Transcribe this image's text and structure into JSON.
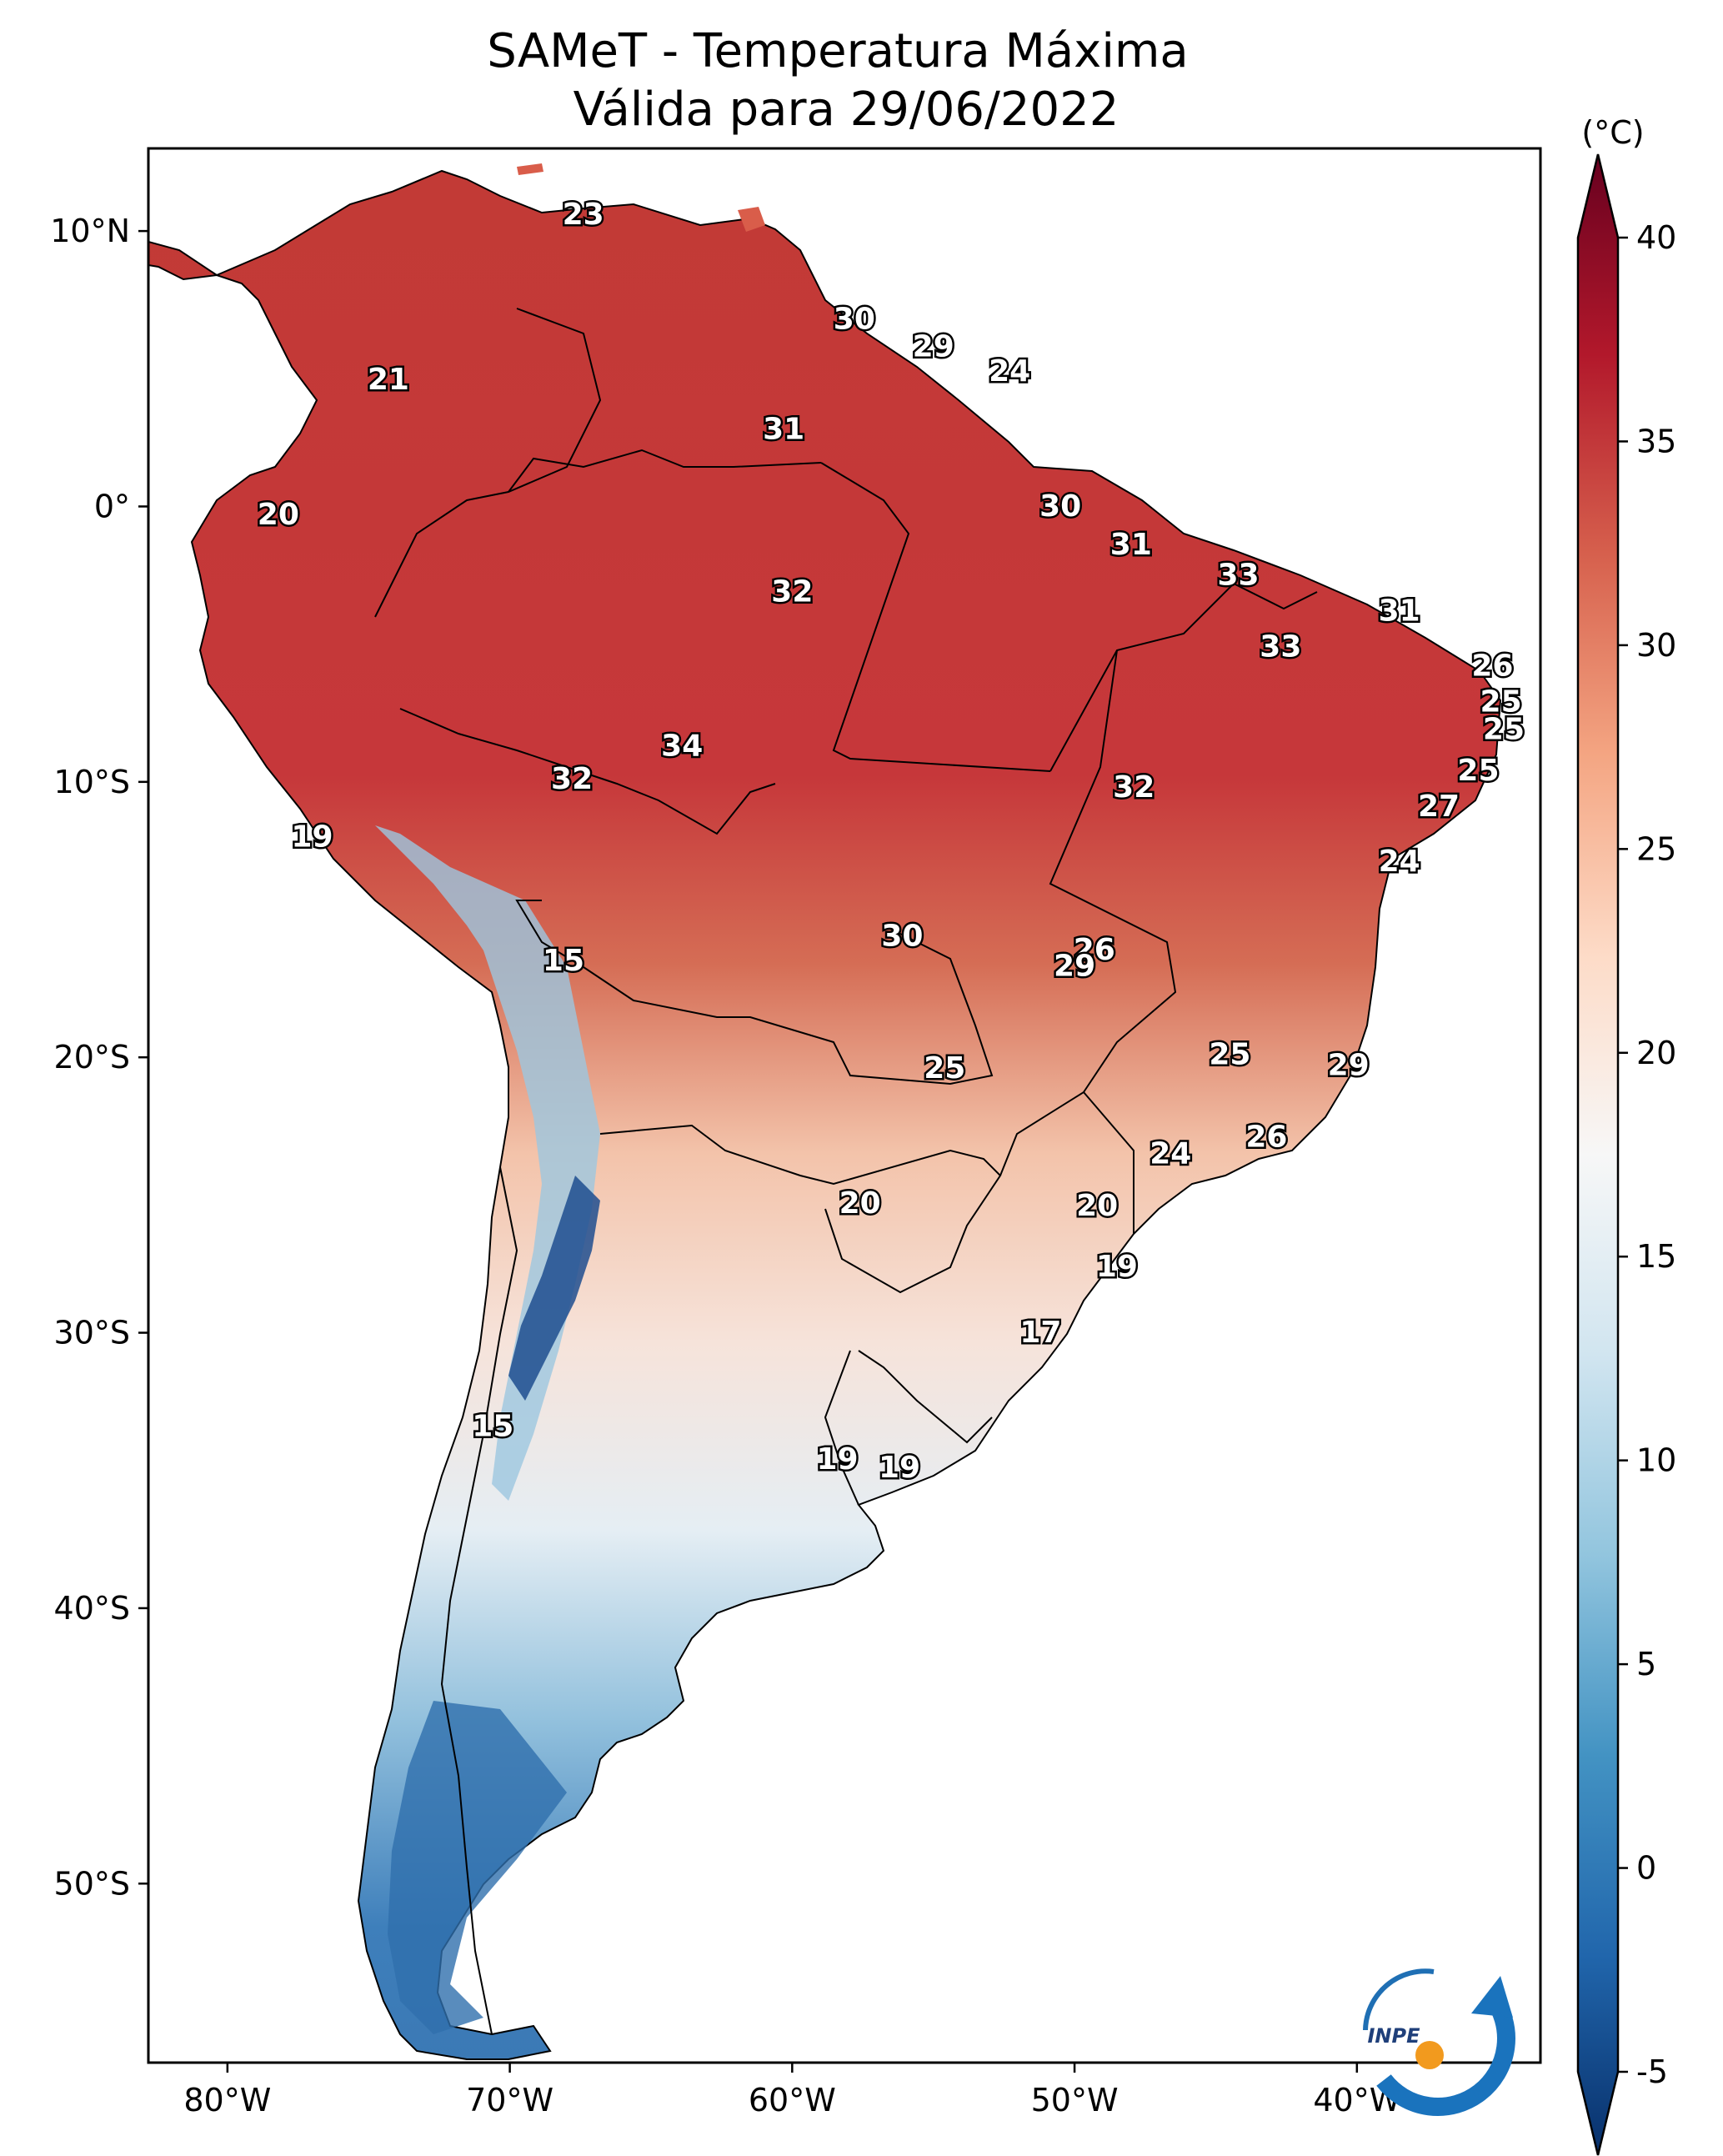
{
  "title": "SAMeT - Temperatura Máxima",
  "subtitle": "Válida para 29/06/2022",
  "colorbar": {
    "unit": "(°C)",
    "min": -5,
    "max": 40,
    "ticks": [
      "40",
      "35",
      "30",
      "25",
      "20",
      "15",
      "10",
      "5",
      "0",
      "-5"
    ],
    "colors": [
      "#08306b",
      "#2166ac",
      "#4393c3",
      "#92c5de",
      "#d1e5f0",
      "#f7f7f7",
      "#fddbc7",
      "#f4a582",
      "#d6604d",
      "#b2182b",
      "#67001f"
    ]
  },
  "axes": {
    "lon_ticks": [
      "80°W",
      "70°W",
      "60°W",
      "50°W",
      "40°W"
    ],
    "lat_ticks": [
      "10°N",
      "0°",
      "10°S",
      "20°S",
      "30°S",
      "40°S",
      "50°S"
    ]
  },
  "logo": {
    "text": "INPE"
  },
  "station_labels": [
    {
      "lon": -67.4,
      "lat": 10.6,
      "value": "23"
    },
    {
      "lon": -74.3,
      "lat": 4.6,
      "value": "21"
    },
    {
      "lon": -78.2,
      "lat": -0.3,
      "value": "20"
    },
    {
      "lon": -57.8,
      "lat": 6.8,
      "value": "30"
    },
    {
      "lon": -55.0,
      "lat": 5.8,
      "value": "29"
    },
    {
      "lon": -52.3,
      "lat": 4.9,
      "value": "24"
    },
    {
      "lon": -60.3,
      "lat": 2.8,
      "value": "31"
    },
    {
      "lon": -50.5,
      "lat": 0.0,
      "value": "30"
    },
    {
      "lon": -48.0,
      "lat": -1.4,
      "value": "31"
    },
    {
      "lon": -60.0,
      "lat": -3.1,
      "value": "32"
    },
    {
      "lon": -44.2,
      "lat": -2.5,
      "value": "33"
    },
    {
      "lon": -38.5,
      "lat": -3.8,
      "value": "31"
    },
    {
      "lon": -42.7,
      "lat": -5.1,
      "value": "33"
    },
    {
      "lon": -35.2,
      "lat": -5.8,
      "value": "26"
    },
    {
      "lon": -34.9,
      "lat": -7.1,
      "value": "25"
    },
    {
      "lon": -34.8,
      "lat": -8.1,
      "value": "25"
    },
    {
      "lon": -35.7,
      "lat": -9.6,
      "value": "25"
    },
    {
      "lon": -37.1,
      "lat": -10.9,
      "value": "27"
    },
    {
      "lon": -38.5,
      "lat": -12.9,
      "value": "24"
    },
    {
      "lon": -63.9,
      "lat": -8.7,
      "value": "34"
    },
    {
      "lon": -67.8,
      "lat": -9.9,
      "value": "32"
    },
    {
      "lon": -47.9,
      "lat": -10.2,
      "value": "32"
    },
    {
      "lon": -77.0,
      "lat": -12.0,
      "value": "19"
    },
    {
      "lon": -68.1,
      "lat": -16.5,
      "value": "15"
    },
    {
      "lon": -56.1,
      "lat": -15.6,
      "value": "30"
    },
    {
      "lon": -49.3,
      "lat": -16.1,
      "value": "26"
    },
    {
      "lon": -50.0,
      "lat": -16.7,
      "value": "29"
    },
    {
      "lon": -54.6,
      "lat": -20.4,
      "value": "25"
    },
    {
      "lon": -44.5,
      "lat": -19.9,
      "value": "25"
    },
    {
      "lon": -40.3,
      "lat": -20.3,
      "value": "29"
    },
    {
      "lon": -43.2,
      "lat": -22.9,
      "value": "26"
    },
    {
      "lon": -46.6,
      "lat": -23.5,
      "value": "24"
    },
    {
      "lon": -57.6,
      "lat": -25.3,
      "value": "20"
    },
    {
      "lon": -49.2,
      "lat": -25.4,
      "value": "20"
    },
    {
      "lon": -48.5,
      "lat": -27.6,
      "value": "19"
    },
    {
      "lon": -51.2,
      "lat": -30.0,
      "value": "17"
    },
    {
      "lon": -70.6,
      "lat": -33.4,
      "value": "15"
    },
    {
      "lon": -58.4,
      "lat": -34.6,
      "value": "19"
    },
    {
      "lon": -56.2,
      "lat": -34.9,
      "value": "19"
    }
  ]
}
